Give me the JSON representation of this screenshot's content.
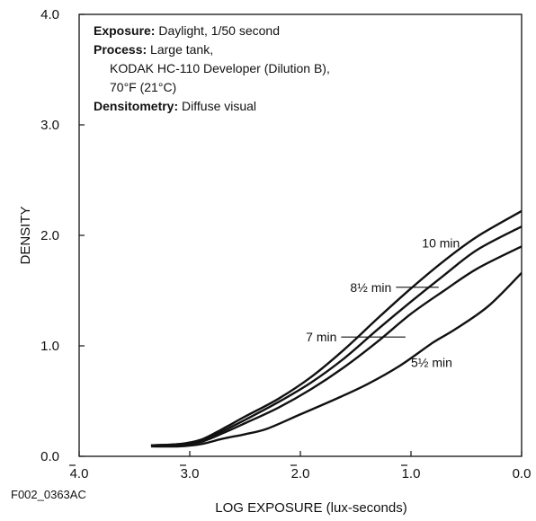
{
  "figure_id": "F002_0363AC",
  "info_box": [
    {
      "bold": "Exposure:",
      "text": " Daylight, 1/50 second",
      "indent": false
    },
    {
      "bold": "Process:",
      "text": " Large tank,",
      "indent": false
    },
    {
      "bold": "",
      "text": "KODAK HC-110 Developer (Dilution B),",
      "indent": true
    },
    {
      "bold": "",
      "text": "70°F (21°C)",
      "indent": true
    },
    {
      "bold": "Densitometry:",
      "text": " Diffuse visual",
      "indent": false
    }
  ],
  "chart_data": {
    "type": "line",
    "xlabel": "LOG EXPOSURE (lux-seconds)",
    "ylabel": "DENSITY",
    "xlim": [
      -4.0,
      0.0
    ],
    "ylim": [
      0.0,
      4.0
    ],
    "xticks": [
      {
        "value": -4.0,
        "label": "4.0",
        "bar_over_first_digit": true
      },
      {
        "value": -3.0,
        "label": "3.0",
        "bar_over_first_digit": true
      },
      {
        "value": -2.0,
        "label": "2.0",
        "bar_over_first_digit": true
      },
      {
        "value": -1.0,
        "label": "1.0",
        "bar_over_first_digit": true
      },
      {
        "value": 0.0,
        "label": "0.0",
        "bar_over_first_digit": false
      }
    ],
    "yticks": [
      {
        "value": 0.0,
        "label": "0.0"
      },
      {
        "value": 1.0,
        "label": "1.0"
      },
      {
        "value": 2.0,
        "label": "2.0"
      },
      {
        "value": 3.0,
        "label": "3.0"
      },
      {
        "value": 4.0,
        "label": "4.0"
      }
    ],
    "series": [
      {
        "name": "10 min",
        "points": [
          [
            -3.35,
            0.1
          ],
          [
            -3.1,
            0.11
          ],
          [
            -2.9,
            0.15
          ],
          [
            -2.7,
            0.25
          ],
          [
            -2.5,
            0.36
          ],
          [
            -2.2,
            0.52
          ],
          [
            -1.9,
            0.72
          ],
          [
            -1.6,
            0.97
          ],
          [
            -1.3,
            1.25
          ],
          [
            -1.0,
            1.52
          ],
          [
            -0.7,
            1.77
          ],
          [
            -0.4,
            1.99
          ],
          [
            0.0,
            2.22
          ]
        ]
      },
      {
        "name": "8½ min",
        "points": [
          [
            -3.35,
            0.1
          ],
          [
            -3.1,
            0.11
          ],
          [
            -2.9,
            0.14
          ],
          [
            -2.7,
            0.23
          ],
          [
            -2.5,
            0.33
          ],
          [
            -2.2,
            0.49
          ],
          [
            -1.9,
            0.67
          ],
          [
            -1.6,
            0.89
          ],
          [
            -1.3,
            1.15
          ],
          [
            -1.0,
            1.4
          ],
          [
            -0.7,
            1.64
          ],
          [
            -0.4,
            1.87
          ],
          [
            0.0,
            2.08
          ]
        ]
      },
      {
        "name": "7 min",
        "points": [
          [
            -3.35,
            0.1
          ],
          [
            -3.1,
            0.1
          ],
          [
            -2.9,
            0.13
          ],
          [
            -2.7,
            0.21
          ],
          [
            -2.5,
            0.3
          ],
          [
            -2.2,
            0.44
          ],
          [
            -1.9,
            0.61
          ],
          [
            -1.6,
            0.81
          ],
          [
            -1.3,
            1.04
          ],
          [
            -1.0,
            1.29
          ],
          [
            -0.7,
            1.5
          ],
          [
            -0.4,
            1.7
          ],
          [
            0.0,
            1.9
          ]
        ]
      },
      {
        "name": "5½ min",
        "points": [
          [
            -3.35,
            0.09
          ],
          [
            -3.1,
            0.09
          ],
          [
            -2.9,
            0.11
          ],
          [
            -2.7,
            0.16
          ],
          [
            -2.5,
            0.2
          ],
          [
            -2.3,
            0.25
          ],
          [
            -2.0,
            0.38
          ],
          [
            -1.7,
            0.51
          ],
          [
            -1.4,
            0.65
          ],
          [
            -1.1,
            0.82
          ],
          [
            -0.8,
            1.03
          ],
          [
            -0.6,
            1.15
          ],
          [
            -0.3,
            1.36
          ],
          [
            0.0,
            1.66
          ]
        ]
      }
    ],
    "annotations": [
      {
        "label": "10 min",
        "leader": false,
        "at": [
          -0.9,
          1.93
        ]
      },
      {
        "label": "8½ min",
        "leader": true,
        "at": [
          -1.55,
          1.53
        ],
        "to": [
          -0.75,
          1.53
        ]
      },
      {
        "label": "7 min",
        "leader": true,
        "at": [
          -1.95,
          1.08
        ],
        "to": [
          -1.05,
          1.08
        ]
      },
      {
        "label": "5½ min",
        "leader": false,
        "at": [
          -1.0,
          0.85
        ]
      }
    ]
  }
}
